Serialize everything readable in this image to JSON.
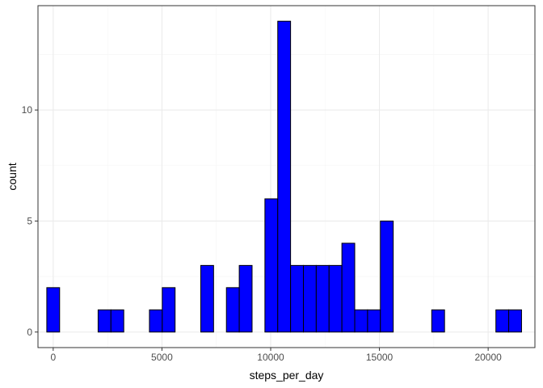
{
  "chart_data": {
    "type": "bar",
    "subtype": "histogram",
    "title": "",
    "xlabel": "steps_per_day",
    "ylabel": "count",
    "xlim": [
      -700,
      22150
    ],
    "ylim": [
      -0.7,
      14.7
    ],
    "x_ticks": [
      0,
      5000,
      10000,
      15000,
      20000
    ],
    "x_tick_labels": [
      "0",
      "5000",
      "10000",
      "15000",
      "20000"
    ],
    "y_ticks": [
      0,
      5,
      10
    ],
    "y_tick_labels": [
      "0",
      "5",
      "10"
    ],
    "bin_width": 590,
    "bins": [
      {
        "center": 0,
        "count": 2
      },
      {
        "center": 590,
        "count": 0
      },
      {
        "center": 1180,
        "count": 0
      },
      {
        "center": 1770,
        "count": 0
      },
      {
        "center": 2360,
        "count": 1
      },
      {
        "center": 2950,
        "count": 1
      },
      {
        "center": 3540,
        "count": 0
      },
      {
        "center": 4130,
        "count": 0
      },
      {
        "center": 4720,
        "count": 1
      },
      {
        "center": 5310,
        "count": 2
      },
      {
        "center": 5900,
        "count": 0
      },
      {
        "center": 6490,
        "count": 0
      },
      {
        "center": 7080,
        "count": 3
      },
      {
        "center": 7670,
        "count": 0
      },
      {
        "center": 8260,
        "count": 2
      },
      {
        "center": 8850,
        "count": 3
      },
      {
        "center": 9440,
        "count": 0
      },
      {
        "center": 10030,
        "count": 6
      },
      {
        "center": 10620,
        "count": 14
      },
      {
        "center": 11210,
        "count": 3
      },
      {
        "center": 11800,
        "count": 3
      },
      {
        "center": 12390,
        "count": 3
      },
      {
        "center": 12980,
        "count": 3
      },
      {
        "center": 13570,
        "count": 4
      },
      {
        "center": 14160,
        "count": 1
      },
      {
        "center": 14750,
        "count": 1
      },
      {
        "center": 15340,
        "count": 5
      },
      {
        "center": 15930,
        "count": 0
      },
      {
        "center": 16520,
        "count": 0
      },
      {
        "center": 17110,
        "count": 0
      },
      {
        "center": 17700,
        "count": 1
      },
      {
        "center": 18290,
        "count": 0
      },
      {
        "center": 18880,
        "count": 0
      },
      {
        "center": 19470,
        "count": 0
      },
      {
        "center": 20060,
        "count": 0
      },
      {
        "center": 20650,
        "count": 1
      },
      {
        "center": 21240,
        "count": 1
      }
    ],
    "grid": true,
    "legend": "none",
    "colors": {
      "bar_fill": "#0000ff",
      "bar_stroke": "#000000",
      "panel_border": "#333333",
      "grid_major": "#ebebeb",
      "grid_minor": "#f5f5f5",
      "tick_text": "#4d4d4d"
    }
  }
}
